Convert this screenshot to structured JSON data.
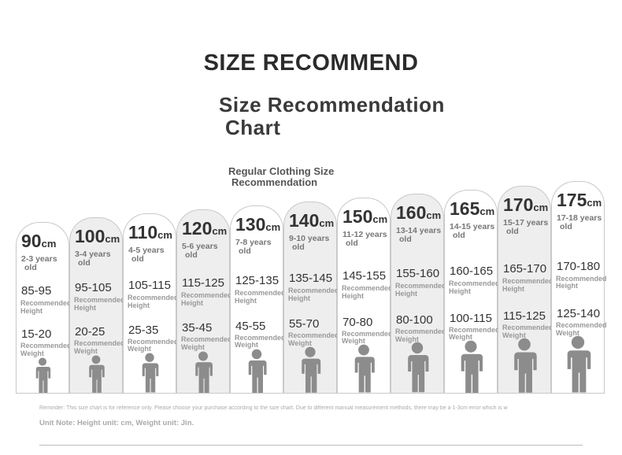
{
  "title": "SIZE RECOMMEND",
  "subtitle_line1": "Size Recommendation",
  "subtitle_line2": "Chart",
  "regular_line1": "Regular Clothing Size",
  "regular_line2": "Recommendation",
  "labels": {
    "height": [
      "Recommended",
      "Height"
    ],
    "weight": [
      "Recommended",
      "Weight"
    ]
  },
  "unit": "cm",
  "columns": [
    {
      "size": "90",
      "age": [
        "2-3 years",
        "old"
      ],
      "height": "85-95",
      "weight": "15-20"
    },
    {
      "size": "100",
      "age": [
        "3-4 years",
        "old"
      ],
      "height": "95-105",
      "weight": "20-25"
    },
    {
      "size": "110",
      "age": [
        "4-5 years",
        "old"
      ],
      "height": "105-115",
      "weight": "25-35"
    },
    {
      "size": "120",
      "age": [
        "5-6 years",
        "old"
      ],
      "height": "115-125",
      "weight": "35-45"
    },
    {
      "size": "130",
      "age": [
        "7-8 years",
        "old"
      ],
      "height": "125-135",
      "weight": "45-55"
    },
    {
      "size": "140",
      "age": [
        "9-10 years",
        "old"
      ],
      "height": "135-145",
      "weight": "55-70"
    },
    {
      "size": "150",
      "age": [
        "11-12 years",
        "old"
      ],
      "height": "145-155",
      "weight": "70-80"
    },
    {
      "size": "160",
      "age": [
        "13-14 years",
        "old"
      ],
      "height": "155-160",
      "weight": "80-100"
    },
    {
      "size": "165",
      "age": [
        "14-15 years",
        "old"
      ],
      "height": "160-165",
      "weight": "100-115"
    },
    {
      "size": "170",
      "age": [
        "15-17 years",
        "old"
      ],
      "height": "165-170",
      "weight": "115-125"
    },
    {
      "size": "175",
      "age": [
        "17-18 years",
        "old"
      ],
      "height": "170-180",
      "weight": "125-140"
    }
  ],
  "reminder": "Reminder: This size chart is for reference only. Please choose your purchase according to the size chart. Due to different manual measurement methods, there may be a 1-3cm error which is w",
  "unit_note": "Unit Note: Height unit: cm, Weight unit: Jin.",
  "colors": {
    "shade": "#eeeeee",
    "figure": "#8c8c8c",
    "border": "#c9c9c9"
  }
}
